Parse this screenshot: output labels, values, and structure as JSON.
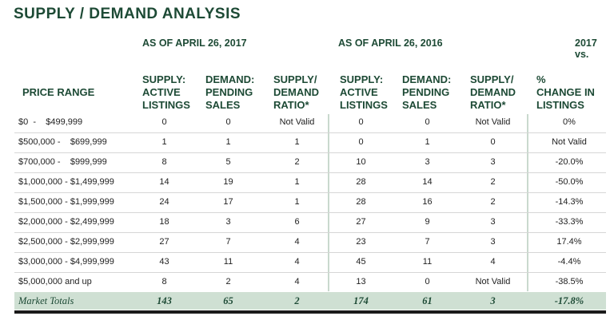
{
  "title": "SUPPLY / DEMAND ANALYSIS",
  "as_of_2017": "AS OF APRIL 26, 2017",
  "as_of_2016": "AS OF APRIL 26, 2016",
  "change_header_top": "2017 vs.",
  "headers": {
    "price_range": "PRICE RANGE",
    "supply": [
      "SUPPLY:",
      "ACTIVE",
      "LISTINGS"
    ],
    "demand": [
      "DEMAND:",
      "PENDING",
      "SALES"
    ],
    "ratio": [
      "SUPPLY/",
      "DEMAND",
      "RATIO*"
    ],
    "change": [
      "%",
      "CHANGE IN",
      "LISTINGS"
    ]
  },
  "rows": [
    {
      "range": "$0  -    $499,999",
      "s17": "0",
      "d17": "0",
      "r17": "Not Valid",
      "s16": "0",
      "d16": "0",
      "r16": "Not Valid",
      "chg": "0%"
    },
    {
      "range": "$500,000 -    $699,999",
      "s17": "1",
      "d17": "1",
      "r17": "1",
      "s16": "0",
      "d16": "1",
      "r16": "0",
      "chg": "Not Valid"
    },
    {
      "range": "$700,000 -    $999,999",
      "s17": "8",
      "d17": "5",
      "r17": "2",
      "s16": "10",
      "d16": "3",
      "r16": "3",
      "chg": "-20.0%"
    },
    {
      "range": "$1,000,000 - $1,499,999",
      "s17": "14",
      "d17": "19",
      "r17": "1",
      "s16": "28",
      "d16": "14",
      "r16": "2",
      "chg": "-50.0%"
    },
    {
      "range": "$1,500,000 - $1,999,999",
      "s17": "24",
      "d17": "17",
      "r17": "1",
      "s16": "28",
      "d16": "16",
      "r16": "2",
      "chg": "-14.3%"
    },
    {
      "range": "$2,000,000 - $2,499,999",
      "s17": "18",
      "d17": "3",
      "r17": "6",
      "s16": "27",
      "d16": "9",
      "r16": "3",
      "chg": "-33.3%"
    },
    {
      "range": "$2,500,000 - $2,999,999",
      "s17": "27",
      "d17": "7",
      "r17": "4",
      "s16": "23",
      "d16": "7",
      "r16": "3",
      "chg": "17.4%"
    },
    {
      "range": "$3,000,000 - $4,999,999",
      "s17": "43",
      "d17": "11",
      "r17": "4",
      "s16": "45",
      "d16": "11",
      "r16": "4",
      "chg": "-4.4%"
    },
    {
      "range": "$5,000,000 and up",
      "s17": "8",
      "d17": "2",
      "r17": "4",
      "s16": "13",
      "d16": "0",
      "r16": "Not Valid",
      "chg": "-38.5%"
    }
  ],
  "totals": {
    "label": "Market Totals",
    "s17": "143",
    "d17": "65",
    "r17": "2",
    "s16": "174",
    "d16": "61",
    "r16": "3",
    "chg": "-17.8%"
  }
}
